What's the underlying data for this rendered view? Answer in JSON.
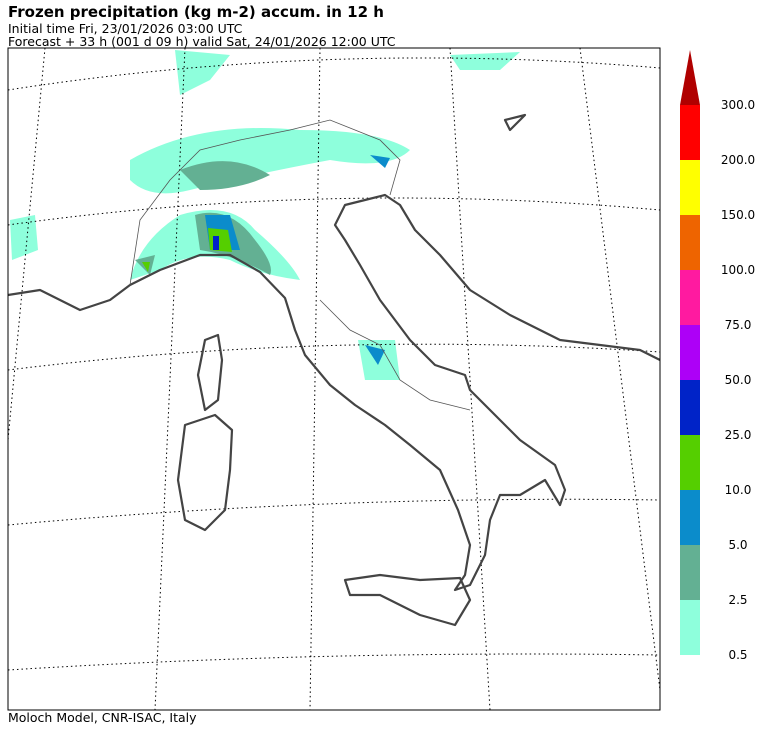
{
  "header": {
    "title": "Frozen precipitation (kg m-2) accum. in 12 h",
    "initial_time": "Initial time  Fri, 23/01/2026  03:00 UTC",
    "forecast": "Forecast  +  33 h  (001 d 09 h)  valid Sat, 24/01/2026 12:00 UTC"
  },
  "footer": "Moloch Model, CNR-ISAC, Italy",
  "colorbar": {
    "unit": "kg m-2",
    "levels": [
      "0.5",
      "2.5",
      "5.0",
      "10.0",
      "25.0",
      "50.0",
      "75.0",
      "100.0",
      "150.0",
      "200.0",
      "300.0"
    ],
    "colors": [
      "#8effdc",
      "#63b093",
      "#0b8ccb",
      "#55cf00",
      "#0023c8",
      "#ad00f7",
      "#ff1aa0",
      "#ee6400",
      "#ffff00",
      "#ff0000"
    ],
    "extend_color": "#b00000"
  },
  "map": {
    "region": "Italy",
    "coastline_color": "#444444",
    "gridlines": "dotted"
  }
}
